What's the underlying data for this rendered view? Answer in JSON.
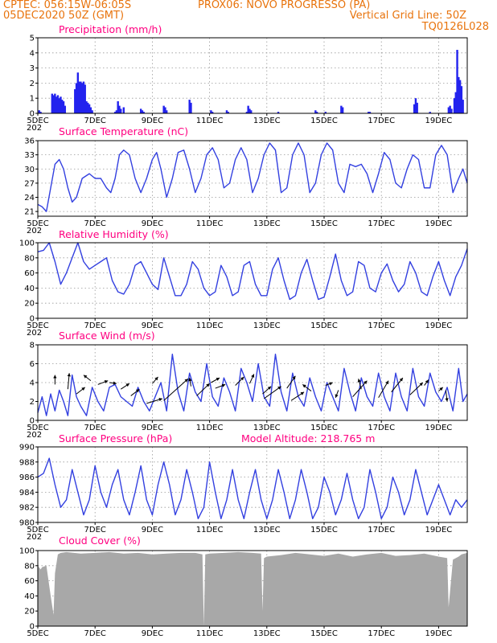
{
  "header": {
    "left_line1": "CPTEC:   056:15W-06:05S",
    "center_line1": "PROX06: NOVO PROGRESSO (PA)",
    "left_line2": "05DEC2020 50Z (GMT)",
    "right_line2": "Vertical Grid Line: 50Z",
    "right_line3": "TQ0126L028"
  },
  "model_altitude": "Model Altitude: 218.765 m",
  "x_axis": {
    "ticks": [
      "5DEC",
      "7DEC",
      "9DEC",
      "11DEC",
      "13DEC",
      "15DEC",
      "17DEC",
      "19DEC"
    ],
    "tick_days": [
      5,
      7,
      9,
      11,
      13,
      15,
      17,
      19
    ],
    "year_fragment": "202",
    "range_days": [
      5,
      20
    ]
  },
  "colors": {
    "line": "#3340e0",
    "bar": "#2222ee",
    "cloud": "#a8a8a8",
    "title": "#ff0080",
    "header": "#e8730c"
  },
  "chart_data": [
    {
      "type": "bar",
      "title": "Precipitation (mm/h)",
      "ylim": [
        0,
        5
      ],
      "yticks": [
        0,
        1,
        2,
        3,
        4,
        5
      ],
      "x": [
        5.05,
        5.1,
        5.5,
        5.55,
        5.6,
        5.65,
        5.7,
        5.75,
        5.8,
        5.85,
        5.9,
        5.95,
        6.3,
        6.35,
        6.4,
        6.45,
        6.5,
        6.55,
        6.6,
        6.65,
        6.7,
        6.75,
        6.8,
        6.85,
        6.9,
        7.7,
        7.75,
        7.8,
        7.85,
        7.9,
        8.0,
        8.6,
        8.65,
        8.7,
        9.4,
        9.45,
        9.5,
        10.3,
        10.35,
        11.05,
        11.1,
        11.6,
        11.65,
        12.3,
        12.35,
        12.4,
        12.45,
        13.4,
        14.7,
        14.75,
        15.05,
        15.6,
        15.65,
        16.55,
        16.6,
        18.15,
        18.2,
        18.25,
        18.7,
        19.35,
        19.4,
        19.45,
        19.55,
        19.6,
        19.65,
        19.7,
        19.75,
        19.8,
        19.85
      ],
      "values": [
        0.2,
        0.1,
        1.3,
        1.2,
        1.3,
        1.1,
        1.2,
        1.0,
        1.1,
        0.9,
        0.8,
        0.5,
        1.6,
        2.0,
        2.7,
        2.1,
        2.1,
        2.0,
        2.1,
        1.9,
        0.8,
        0.7,
        0.6,
        0.4,
        0.2,
        0.1,
        0.2,
        0.8,
        0.5,
        0.3,
        0.4,
        0.3,
        0.2,
        0.1,
        0.5,
        0.4,
        0.2,
        0.9,
        0.7,
        0.2,
        0.1,
        0.2,
        0.1,
        0.1,
        0.5,
        0.3,
        0.2,
        0.1,
        0.2,
        0.1,
        0.1,
        0.5,
        0.4,
        0.1,
        0.1,
        0.6,
        1.0,
        0.7,
        0.1,
        0.4,
        0.5,
        0.3,
        1.0,
        1.4,
        4.2,
        2.4,
        2.2,
        1.8,
        0.9
      ]
    },
    {
      "type": "line",
      "title": "Surface Temperature (nC)",
      "ylim": [
        20,
        36
      ],
      "yticks": [
        21,
        24,
        27,
        30,
        33,
        36
      ],
      "x": [
        5.0,
        5.15,
        5.3,
        5.45,
        5.6,
        5.75,
        5.9,
        6.05,
        6.2,
        6.35,
        6.55,
        6.8,
        7.0,
        7.2,
        7.4,
        7.55,
        7.7,
        7.85,
        8.0,
        8.2,
        8.4,
        8.6,
        8.8,
        9.0,
        9.15,
        9.3,
        9.5,
        9.7,
        9.9,
        10.1,
        10.3,
        10.5,
        10.7,
        10.9,
        11.1,
        11.3,
        11.5,
        11.7,
        11.9,
        12.1,
        12.3,
        12.5,
        12.7,
        12.9,
        13.1,
        13.3,
        13.5,
        13.7,
        13.9,
        14.1,
        14.3,
        14.5,
        14.7,
        14.9,
        15.1,
        15.3,
        15.5,
        15.7,
        15.9,
        16.1,
        16.3,
        16.5,
        16.7,
        16.9,
        17.1,
        17.3,
        17.5,
        17.7,
        17.9,
        18.1,
        18.3,
        18.5,
        18.7,
        18.9,
        19.1,
        19.3,
        19.5,
        19.7,
        19.85,
        20.0
      ],
      "values": [
        22.5,
        22.0,
        21.0,
        26.0,
        31.0,
        32.0,
        30.0,
        26.0,
        23.0,
        24.0,
        28.0,
        29.0,
        28.0,
        28.0,
        26.0,
        25.0,
        28.0,
        33.0,
        34.0,
        33.0,
        28.0,
        25.0,
        28.0,
        32.0,
        33.5,
        30.0,
        24.0,
        28.0,
        33.5,
        34.0,
        30.0,
        25.0,
        28.0,
        33.0,
        34.5,
        32.0,
        26.0,
        27.0,
        32.0,
        34.5,
        32.0,
        25.0,
        28.0,
        33.0,
        35.5,
        34.0,
        25.0,
        26.0,
        33.0,
        35.5,
        33.0,
        25.0,
        27.0,
        33.0,
        35.5,
        34.0,
        27.0,
        25.0,
        31.0,
        30.5,
        31.0,
        29.0,
        25.0,
        29.0,
        33.5,
        32.0,
        27.0,
        26.0,
        30.0,
        33.0,
        32.0,
        26.0,
        26.0,
        33.0,
        35.0,
        33.0,
        25.0,
        28.0,
        30.0,
        27.0
      ]
    },
    {
      "type": "line",
      "title": "Relative Humidity (%)",
      "ylim": [
        0,
        100
      ],
      "yticks": [
        0,
        20,
        40,
        60,
        80,
        100
      ],
      "x": [
        5.0,
        5.2,
        5.4,
        5.6,
        5.8,
        6.0,
        6.2,
        6.4,
        6.6,
        6.8,
        7.0,
        7.2,
        7.4,
        7.6,
        7.8,
        8.0,
        8.2,
        8.4,
        8.6,
        8.8,
        9.0,
        9.2,
        9.4,
        9.6,
        9.8,
        10.0,
        10.2,
        10.4,
        10.6,
        10.8,
        11.0,
        11.2,
        11.4,
        11.6,
        11.8,
        12.0,
        12.2,
        12.4,
        12.6,
        12.8,
        13.0,
        13.2,
        13.4,
        13.6,
        13.8,
        14.0,
        14.2,
        14.4,
        14.6,
        14.8,
        15.0,
        15.2,
        15.4,
        15.6,
        15.8,
        16.0,
        16.2,
        16.4,
        16.6,
        16.8,
        17.0,
        17.2,
        17.4,
        17.6,
        17.8,
        18.0,
        18.2,
        18.4,
        18.6,
        18.8,
        19.0,
        19.2,
        19.4,
        19.6,
        19.8,
        20.0
      ],
      "values": [
        88,
        90,
        100,
        75,
        45,
        60,
        80,
        100,
        75,
        65,
        70,
        75,
        80,
        50,
        35,
        32,
        45,
        70,
        75,
        60,
        45,
        38,
        80,
        55,
        30,
        30,
        45,
        75,
        65,
        40,
        30,
        35,
        70,
        55,
        30,
        35,
        70,
        75,
        45,
        30,
        30,
        65,
        80,
        50,
        25,
        30,
        60,
        78,
        50,
        25,
        28,
        55,
        85,
        50,
        30,
        35,
        75,
        70,
        40,
        35,
        60,
        72,
        50,
        35,
        45,
        75,
        60,
        35,
        30,
        55,
        75,
        50,
        30,
        55,
        70,
        92
      ]
    },
    {
      "type": "line",
      "title": "Surface Wind (m/s)",
      "ylim": [
        0,
        8
      ],
      "yticks": [
        0,
        2,
        4,
        6,
        8
      ],
      "x": [
        5.0,
        5.15,
        5.3,
        5.45,
        5.6,
        5.75,
        5.9,
        6.05,
        6.2,
        6.35,
        6.5,
        6.7,
        6.9,
        7.1,
        7.3,
        7.5,
        7.7,
        7.9,
        8.1,
        8.3,
        8.5,
        8.7,
        8.9,
        9.1,
        9.3,
        9.5,
        9.7,
        9.9,
        10.1,
        10.3,
        10.5,
        10.7,
        10.9,
        11.1,
        11.3,
        11.5,
        11.7,
        11.9,
        12.1,
        12.3,
        12.5,
        12.7,
        12.9,
        13.1,
        13.3,
        13.5,
        13.7,
        13.9,
        14.1,
        14.3,
        14.5,
        14.7,
        14.9,
        15.1,
        15.3,
        15.5,
        15.7,
        15.9,
        16.1,
        16.3,
        16.5,
        16.7,
        16.9,
        17.1,
        17.3,
        17.5,
        17.7,
        17.9,
        18.1,
        18.3,
        18.5,
        18.7,
        18.9,
        19.1,
        19.3,
        19.5,
        19.7,
        19.85,
        20.0
      ],
      "values": [
        0.8,
        2.5,
        0.5,
        2.8,
        1.0,
        3.2,
        2.0,
        0.5,
        4.8,
        2.5,
        1.5,
        0.5,
        3.5,
        2.0,
        1.0,
        3.5,
        3.8,
        2.5,
        2.0,
        1.5,
        3.5,
        2.0,
        1.0,
        2.5,
        4.0,
        1.0,
        7.0,
        3.0,
        1.0,
        5.0,
        3.0,
        2.0,
        6.0,
        2.5,
        1.5,
        4.5,
        3.0,
        1.0,
        5.5,
        4.0,
        2.0,
        6.0,
        2.5,
        1.5,
        7.0,
        3.0,
        1.0,
        5.0,
        2.5,
        1.5,
        4.5,
        2.5,
        1.0,
        4.0,
        2.5,
        1.0,
        5.5,
        3.0,
        1.0,
        4.5,
        2.5,
        1.5,
        5.0,
        2.5,
        1.0,
        5.0,
        2.5,
        1.0,
        5.5,
        2.5,
        1.5,
        5.0,
        3.0,
        2.0,
        3.5,
        1.0,
        5.5,
        2.0,
        2.8
      ]
    },
    {
      "type": "line",
      "title": "Surface Pressure (hPa)",
      "ylim": [
        980,
        990
      ],
      "yticks": [
        980,
        982,
        984,
        986,
        988,
        990
      ],
      "x": [
        5.0,
        5.2,
        5.4,
        5.6,
        5.8,
        6.0,
        6.2,
        6.4,
        6.6,
        6.8,
        7.0,
        7.2,
        7.4,
        7.6,
        7.8,
        8.0,
        8.2,
        8.4,
        8.6,
        8.8,
        9.0,
        9.2,
        9.4,
        9.6,
        9.8,
        10.0,
        10.2,
        10.4,
        10.6,
        10.8,
        11.0,
        11.2,
        11.4,
        11.6,
        11.8,
        12.0,
        12.2,
        12.4,
        12.6,
        12.8,
        13.0,
        13.2,
        13.4,
        13.6,
        13.8,
        14.0,
        14.2,
        14.4,
        14.6,
        14.8,
        15.0,
        15.2,
        15.4,
        15.6,
        15.8,
        16.0,
        16.2,
        16.4,
        16.6,
        16.8,
        17.0,
        17.2,
        17.4,
        17.6,
        17.8,
        18.0,
        18.2,
        18.4,
        18.6,
        18.8,
        19.0,
        19.2,
        19.4,
        19.6,
        19.8,
        20.0
      ],
      "values": [
        986,
        986.5,
        988.5,
        985,
        982,
        983,
        987,
        984,
        981,
        983,
        987.5,
        984,
        982,
        985,
        987,
        983,
        981,
        984,
        987.5,
        983,
        981,
        985,
        988,
        985,
        981,
        983,
        987,
        984,
        980.5,
        982,
        988,
        984,
        980.5,
        983,
        987,
        983,
        980.5,
        984,
        987,
        983,
        980.5,
        983,
        987,
        984,
        980.5,
        983,
        987,
        984,
        980.5,
        982,
        986,
        984,
        981,
        983,
        986.5,
        983,
        980.5,
        982,
        987,
        984,
        980.5,
        982,
        986,
        984,
        981,
        983,
        987,
        984,
        981,
        983,
        985,
        983,
        981,
        983,
        982,
        983
      ]
    },
    {
      "type": "area",
      "title": "Cloud Cover (%)",
      "ylim": [
        0,
        100
      ],
      "yticks": [
        0,
        20,
        40,
        60,
        80,
        100
      ],
      "x": [
        5.0,
        5.1,
        5.15,
        5.3,
        5.45,
        5.55,
        5.6,
        5.7,
        5.8,
        6.0,
        6.5,
        7.0,
        7.5,
        8.0,
        8.5,
        9.0,
        9.5,
        10.0,
        10.5,
        10.75,
        10.8,
        10.85,
        11.0,
        11.5,
        12.0,
        12.5,
        12.8,
        12.85,
        12.9,
        13.0,
        13.5,
        14.0,
        14.5,
        15.0,
        15.5,
        16.0,
        16.5,
        17.0,
        17.5,
        18.0,
        18.5,
        19.0,
        19.3,
        19.35,
        19.5,
        19.7,
        19.8,
        20.0
      ],
      "values": [
        80,
        75,
        78,
        80,
        40,
        15,
        70,
        95,
        97,
        98,
        96,
        97,
        98,
        96,
        97,
        95,
        96,
        97,
        97,
        95,
        0,
        95,
        96,
        97,
        98,
        97,
        96,
        20,
        90,
        92,
        94,
        97,
        95,
        93,
        96,
        92,
        95,
        97,
        93,
        94,
        96,
        92,
        90,
        25,
        88,
        92,
        95,
        97
      ]
    }
  ]
}
